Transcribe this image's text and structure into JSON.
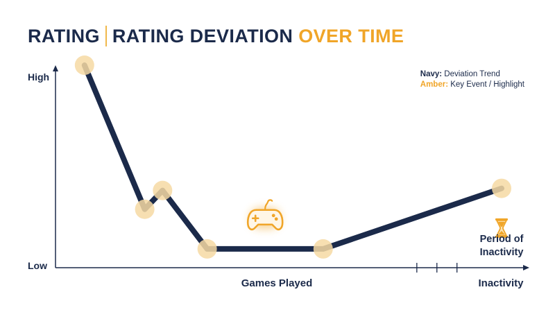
{
  "title": {
    "part1": "RATING",
    "part2": "RATING DEVIATION",
    "part3": "OVER TIME"
  },
  "legend": {
    "navy_key": "Navy:",
    "navy_text": "Deviation Trend",
    "amber_key": "Amber:",
    "amber_text": "Key Event / Highlight"
  },
  "colors": {
    "navy": "#1b2a4a",
    "amber": "#f0a528",
    "highlight": "#f6d9a3"
  },
  "chart_data": {
    "type": "line",
    "title": "RATING | RATING DEVIATION OVER TIME",
    "xlabel": "Games Played",
    "ylabel": "",
    "y_tick_labels": [
      "High",
      "Low"
    ],
    "x_end_label": "Inactivity",
    "xlim": [
      0,
      10
    ],
    "ylim": [
      0,
      10
    ],
    "series": [
      {
        "name": "Deviation Trend",
        "x": [
          0.65,
          2.0,
          2.4,
          3.4,
          6.0,
          10.0
        ],
        "y": [
          9.7,
          2.8,
          3.7,
          0.9,
          0.9,
          3.8
        ]
      }
    ],
    "highlight_points": [
      0,
      1,
      2,
      3,
      4,
      5
    ],
    "inactivity_ticks": [
      8.1,
      8.55,
      9.0
    ],
    "annotations": [
      {
        "icon": "gamepad-icon",
        "x": 4.7,
        "y": 2.4
      },
      {
        "icon": "hourglass-icon",
        "label_line1": "Period of",
        "label_line2": "Inactivity",
        "x": 10.0,
        "y": 1.5
      }
    ]
  }
}
